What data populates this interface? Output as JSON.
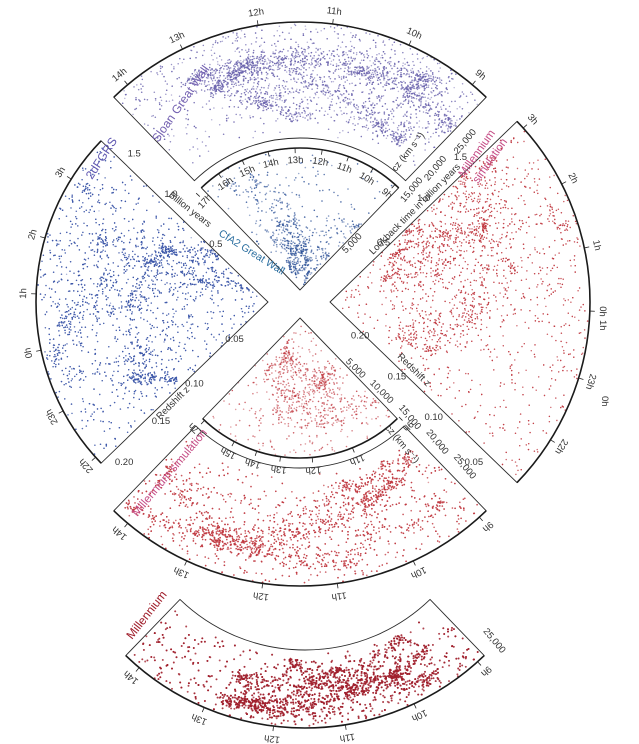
{
  "colors": {
    "sdss": "#6a63ad",
    "twodf": "#3a55a8",
    "cfa2": "#2a4f96",
    "millennium": "#c0373f",
    "millennium_dark": "#a01f2c",
    "title_sdss": "#7360b0",
    "title_twodf": "#5e56b0",
    "title_cfa2": "#2c6fa0",
    "title_mill": "#c54d86"
  },
  "titles": {
    "sloan": "Sloan Great Wall",
    "twodf": "2dFGRS",
    "cfa2": "CfA2 Great Wall",
    "mill_right": "Millennium simulation",
    "mill_mid": "Millennium simulation",
    "mill_bottom": "Millennium"
  },
  "axis_titles": {
    "cz": "cz (km s⁻¹)",
    "billion_years": "Billion years",
    "lookback": "Lookback time in billion years",
    "redshift_left": "Redshift z",
    "redshift_right": "Redshift z"
  },
  "sdss": {
    "hours": [
      {
        "label": "14h",
        "angle": -40
      },
      {
        "label": "13h",
        "angle": -26
      },
      {
        "label": "12h",
        "angle": -9
      },
      {
        "label": "11h",
        "angle": 7
      },
      {
        "label": "10h",
        "angle": 24
      },
      {
        "label": "9h",
        "angle": 40
      }
    ],
    "cz": [
      {
        "label": "15,000",
        "r": 150
      },
      {
        "label": "20,000",
        "r": 182
      },
      {
        "label": "25,000",
        "r": 222
      }
    ]
  },
  "cfa2": {
    "hours": [
      {
        "label": "17h",
        "angle": -47
      },
      {
        "label": "16h",
        "angle": -35
      },
      {
        "label": "15h",
        "angle": -24
      },
      {
        "label": "14h",
        "angle": -13
      },
      {
        "label": "13h",
        "angle": -2
      },
      {
        "label": "12h",
        "angle": 9
      },
      {
        "label": "11h",
        "angle": 20
      },
      {
        "label": "10h",
        "angle": 31
      },
      {
        "label": "9h",
        "angle": 42
      }
    ],
    "cz": [
      {
        "label": "5,000",
        "r": 70
      }
    ]
  },
  "twodf": {
    "hours": [
      {
        "label": "22h",
        "angle": -42
      },
      {
        "label": "23h",
        "angle": -28
      },
      {
        "label": "0h",
        "angle": -12
      },
      {
        "label": "1h",
        "angle": 2
      },
      {
        "label": "2h",
        "angle": 16
      },
      {
        "label": "3h",
        "angle": 32
      }
    ],
    "years": [
      {
        "label": "1.5",
        "r": 200
      },
      {
        "label": "1.0",
        "r": 145
      },
      {
        "label": "0.5",
        "r": 78
      }
    ],
    "z": [
      {
        "label": "0.05",
        "r": 50
      },
      {
        "label": "0.10",
        "r": 110
      },
      {
        "label": "0.15",
        "r": 160
      },
      {
        "label": "0.20",
        "r": 215
      }
    ]
  },
  "mill_right": {
    "hours": [
      {
        "label": "3h",
        "angle": -42
      },
      {
        "label": "2h",
        "angle": -27
      },
      {
        "label": "1h",
        "angle": -12
      },
      {
        "label": "0h",
        "angle": 2
      },
      {
        "label": "23h",
        "angle": 17
      },
      {
        "label": "22h",
        "angle": 32
      }
    ],
    "years": [
      {
        "label": "1.5",
        "r": 195
      },
      {
        "label": "1.0",
        "r": 140
      },
      {
        "label": "0.5",
        "r": 80
      }
    ],
    "z": [
      {
        "label": "0.20",
        "r": 45
      },
      {
        "label": "0.15",
        "r": 100
      },
      {
        "label": "0.10",
        "r": 155
      },
      {
        "label": "0.05",
        "r": 215
      }
    ]
  },
  "mill_mid": {
    "hours": [
      {
        "label": "9h",
        "angle": -42
      },
      {
        "label": "10h",
        "angle": -25
      },
      {
        "label": "11h",
        "angle": -8
      },
      {
        "label": "12h",
        "angle": 8
      },
      {
        "label": "13h",
        "angle": 25
      },
      {
        "label": "14h",
        "angle": 40
      }
    ],
    "inner_hours": [
      {
        "label": "9h",
        "angle": -45
      },
      {
        "label": "11h",
        "angle": -22
      },
      {
        "label": "12h",
        "angle": -5
      },
      {
        "label": "13h",
        "angle": 8
      },
      {
        "label": "14h",
        "angle": 18
      },
      {
        "label": "15h",
        "angle": 28
      },
      {
        "label": "17h",
        "angle": 43
      }
    ],
    "cz": [
      {
        "label": "5,000",
        "r": 75
      },
      {
        "label": "10,000",
        "r": 110
      },
      {
        "label": "15,000",
        "r": 148
      },
      {
        "label": "20,000",
        "r": 185
      },
      {
        "label": "25,000",
        "r": 222
      }
    ]
  },
  "mill_bottom": {
    "hours": [
      {
        "label": "9h",
        "angle": -42
      },
      {
        "label": "10h",
        "angle": -25
      },
      {
        "label": "11h",
        "angle": -9
      },
      {
        "label": "12h",
        "angle": 7
      },
      {
        "label": "13h",
        "angle": 23
      },
      {
        "label": "14h",
        "angle": 40
      }
    ],
    "cz": [
      {
        "label": "25,000",
        "r": 255
      }
    ]
  },
  "side_labels": {
    "right_1h": "1h",
    "right_0h": "0h"
  }
}
